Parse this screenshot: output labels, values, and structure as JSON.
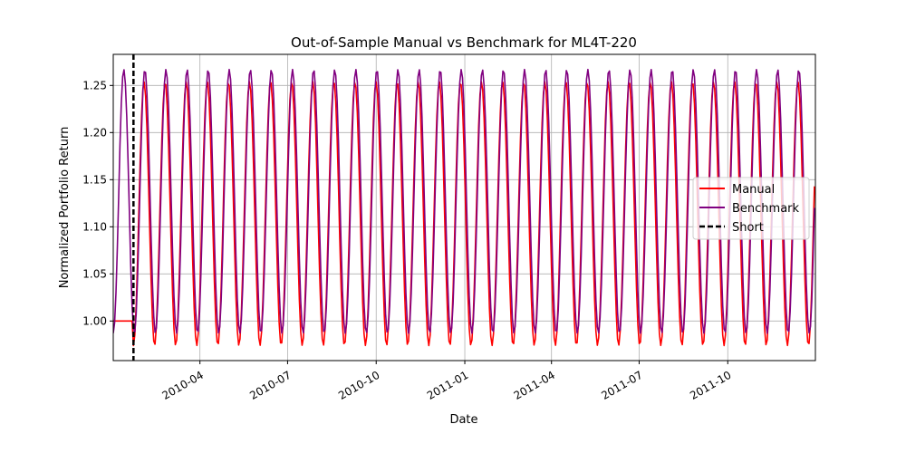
{
  "chart_data": {
    "type": "line",
    "title": "Out-of-Sample Manual vs Benchmark for ML4T-220",
    "xlabel": "Date",
    "ylabel": "Normalized Portfolio Return",
    "xlim": [
      "2010-01-01",
      "2011-12-31"
    ],
    "ylim": [
      0.958,
      1.283
    ],
    "x_ticks": [
      "2010-04",
      "2010-07",
      "2010-10",
      "2011-01",
      "2011-04",
      "2011-07",
      "2011-10"
    ],
    "y_ticks": [
      "1.00",
      "1.05",
      "1.10",
      "1.15",
      "1.20",
      "1.25"
    ],
    "grid": true,
    "legend_position": "center-right",
    "series": [
      {
        "name": "Manual",
        "color": "#ff0000",
        "flat_until": "2010-01-22",
        "flat_value": 1.0,
        "wave": {
          "start": "2010-01-22",
          "period_days": 21.9,
          "min": 0.974,
          "max": 1.254,
          "starts_at": "min"
        }
      },
      {
        "name": "Benchmark",
        "color": "#800080",
        "wave": {
          "start": "2010-01-01",
          "period_days": 21.9,
          "min": 0.987,
          "max": 1.267,
          "starts_at": "min"
        }
      }
    ],
    "vlines": [
      {
        "name": "Short",
        "date": "2010-01-22",
        "color": "#000000",
        "style": "dashed"
      }
    ]
  }
}
